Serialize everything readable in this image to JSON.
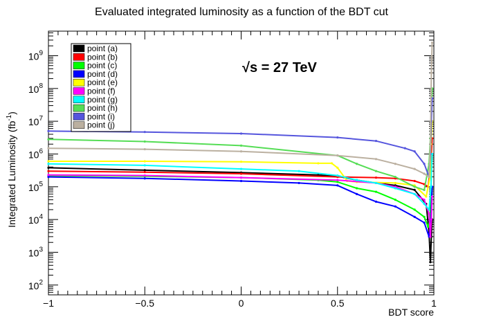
{
  "chart_data": {
    "type": "line",
    "title": "Evaluated integrated luminosity as a function of the BDT cut",
    "xlabel": "BDT score",
    "ylabel": "Integrated Luminosity (fb",
    "ylabel_sup": "-1",
    "ylabel_close": ")",
    "annotation": "√s = 27 TeV",
    "xlim": [
      -1,
      1
    ],
    "ylim_log10": [
      1.7,
      9.75
    ],
    "y_scale": "log",
    "x_ticks": [
      {
        "value": -1,
        "label": "−1"
      },
      {
        "value": -0.5,
        "label": "−0.5"
      },
      {
        "value": 0,
        "label": "0"
      },
      {
        "value": 0.5,
        "label": "0.5"
      },
      {
        "value": 1,
        "label": "1"
      }
    ],
    "y_ticks": [
      {
        "exp": 2,
        "base": "10",
        "sup": "2"
      },
      {
        "exp": 3,
        "base": "10",
        "sup": "3"
      },
      {
        "exp": 4,
        "base": "10",
        "sup": "4"
      },
      {
        "exp": 5,
        "base": "10",
        "sup": "5"
      },
      {
        "exp": 6,
        "base": "10",
        "sup": "6"
      },
      {
        "exp": 7,
        "base": "10",
        "sup": "7"
      },
      {
        "exp": 8,
        "base": "10",
        "sup": "8"
      },
      {
        "exp": 9,
        "base": "10",
        "sup": "9"
      }
    ],
    "legend_position": "top-left",
    "series": [
      {
        "name": "point (a)",
        "color": "#000000",
        "points": [
          [
            -1,
            380000.0
          ],
          [
            -0.5,
            320000.0
          ],
          [
            0,
            270000.0
          ],
          [
            0.4,
            230000.0
          ],
          [
            0.5,
            210000.0
          ],
          [
            0.6,
            160000.0
          ],
          [
            0.7,
            130000.0
          ],
          [
            0.8,
            110000.0
          ],
          [
            0.9,
            80000.0
          ],
          [
            0.96,
            30000.0
          ],
          [
            0.975,
            4000.0
          ],
          [
            0.982,
            500.0
          ],
          [
            0.987,
            3000.0
          ],
          [
            0.991,
            10000.0
          ]
        ]
      },
      {
        "name": "point (b)",
        "color": "#ff0000",
        "points": [
          [
            -1,
            300000.0
          ],
          [
            -0.5,
            280000.0
          ],
          [
            0,
            250000.0
          ],
          [
            0.5,
            200000.0
          ],
          [
            0.7,
            190000.0
          ],
          [
            0.8,
            180000.0
          ],
          [
            0.9,
            150000.0
          ],
          [
            0.95,
            120000.0
          ],
          [
            0.97,
            100000.0
          ],
          [
            0.985,
            500000.0
          ],
          [
            0.991,
            3000000.0
          ]
        ]
      },
      {
        "name": "point (c)",
        "color": "#00ff00",
        "points": [
          [
            -1,
            220000.0
          ],
          [
            -0.5,
            210000.0
          ],
          [
            0,
            190000.0
          ],
          [
            0.4,
            160000.0
          ],
          [
            0.5,
            140000.0
          ],
          [
            0.6,
            90000.0
          ],
          [
            0.7,
            70000.0
          ],
          [
            0.8,
            40000.0
          ],
          [
            0.9,
            20000.0
          ],
          [
            0.95,
            12000.0
          ],
          [
            0.97,
            6000.0
          ],
          [
            0.98,
            10000.0
          ],
          [
            0.985,
            100000.0
          ],
          [
            0.991,
            1000000.0
          ]
        ]
      },
      {
        "name": "point (d)",
        "color": "#0000ff",
        "points": [
          [
            -1,
            200000.0
          ],
          [
            -0.5,
            180000.0
          ],
          [
            0,
            150000.0
          ],
          [
            0.3,
            130000.0
          ],
          [
            0.5,
            110000.0
          ],
          [
            0.6,
            60000.0
          ],
          [
            0.7,
            35000.0
          ],
          [
            0.8,
            25000.0
          ],
          [
            0.9,
            12000.0
          ],
          [
            0.95,
            8000.0
          ],
          [
            0.975,
            3000.0
          ],
          [
            0.985,
            10000.0
          ],
          [
            0.991,
            100000.0
          ]
        ]
      },
      {
        "name": "point (e)",
        "color": "#ffff00",
        "points": [
          [
            -1,
            600000.0
          ],
          [
            -0.5,
            600000.0
          ],
          [
            0,
            580000.0
          ],
          [
            0.4,
            520000.0
          ],
          [
            0.47,
            520000.0
          ],
          [
            0.5,
            380000.0
          ],
          [
            0.55,
            150000.0
          ],
          [
            0.6,
            140000.0
          ],
          [
            0.8,
            130000.0
          ],
          [
            0.9,
            110000.0
          ],
          [
            0.96,
            50000.0
          ],
          [
            0.98,
            200000.0
          ],
          [
            0.985,
            2000000.0
          ],
          [
            0.991,
            10000000.0
          ]
        ]
      },
      {
        "name": "point (f)",
        "color": "#ff00ff",
        "points": [
          [
            -1,
            230000.0
          ],
          [
            -0.5,
            220000.0
          ],
          [
            0,
            190000.0
          ],
          [
            0.5,
            160000.0
          ],
          [
            0.7,
            130000.0
          ],
          [
            0.8,
            100000.0
          ],
          [
            0.9,
            60000.0
          ],
          [
            0.95,
            40000.0
          ],
          [
            0.975,
            15000.0
          ],
          [
            0.982,
            3000.0
          ],
          [
            0.987,
            10000.0
          ],
          [
            0.991,
            50000.0
          ]
        ]
      },
      {
        "name": "point (g)",
        "color": "#00ffff",
        "points": [
          [
            -1,
            500000.0
          ],
          [
            -0.5,
            450000.0
          ],
          [
            0,
            350000.0
          ],
          [
            0.3,
            300000.0
          ],
          [
            0.5,
            220000.0
          ],
          [
            0.6,
            160000.0
          ],
          [
            0.7,
            130000.0
          ],
          [
            0.8,
            90000.0
          ],
          [
            0.9,
            60000.0
          ],
          [
            0.95,
            30000.0
          ],
          [
            0.975,
            20000.0
          ],
          [
            0.985,
            100000.0
          ],
          [
            0.991,
            1000000.0
          ]
        ]
      },
      {
        "name": "point (h)",
        "color": "#55dd55",
        "points": [
          [
            -1,
            2800000.0
          ],
          [
            -0.5,
            2400000.0
          ],
          [
            0,
            1800000.0
          ],
          [
            0.5,
            900000.0
          ],
          [
            0.6,
            500000.0
          ],
          [
            0.7,
            300000.0
          ],
          [
            0.8,
            200000.0
          ],
          [
            0.9,
            100000.0
          ],
          [
            0.95,
            80000.0
          ],
          [
            0.975,
            500000.0
          ],
          [
            0.982,
            3000000.0
          ],
          [
            0.987,
            30000000.0
          ],
          [
            0.991,
            100000000.0
          ]
        ]
      },
      {
        "name": "point (i)",
        "color": "#5555dd",
        "points": [
          [
            -1,
            5000000.0
          ],
          [
            -0.5,
            4700000.0
          ],
          [
            0,
            4200000.0
          ],
          [
            0.5,
            3200000.0
          ],
          [
            0.7,
            2500000.0
          ],
          [
            0.85,
            1500000.0
          ],
          [
            0.9,
            1200000.0
          ],
          [
            0.95,
            500000.0
          ],
          [
            0.975,
            200000.0
          ],
          [
            0.982,
            1000000.0
          ],
          [
            0.987,
            10000000.0
          ],
          [
            0.991,
            50000000.0
          ]
        ]
      },
      {
        "name": "point (j)",
        "color": "#bbb0a0",
        "points": [
          [
            -1,
            1500000.0
          ],
          [
            -0.5,
            1400000.0
          ],
          [
            0,
            1200000.0
          ],
          [
            0.5,
            900000.0
          ],
          [
            0.7,
            700000.0
          ],
          [
            0.8,
            500000.0
          ],
          [
            0.9,
            350000.0
          ],
          [
            0.95,
            250000.0
          ],
          [
            0.975,
            200000.0
          ],
          [
            0.982,
            2000000.0
          ],
          [
            0.987,
            300000000.0
          ],
          [
            0.991,
            2500000000.0
          ]
        ]
      }
    ]
  }
}
